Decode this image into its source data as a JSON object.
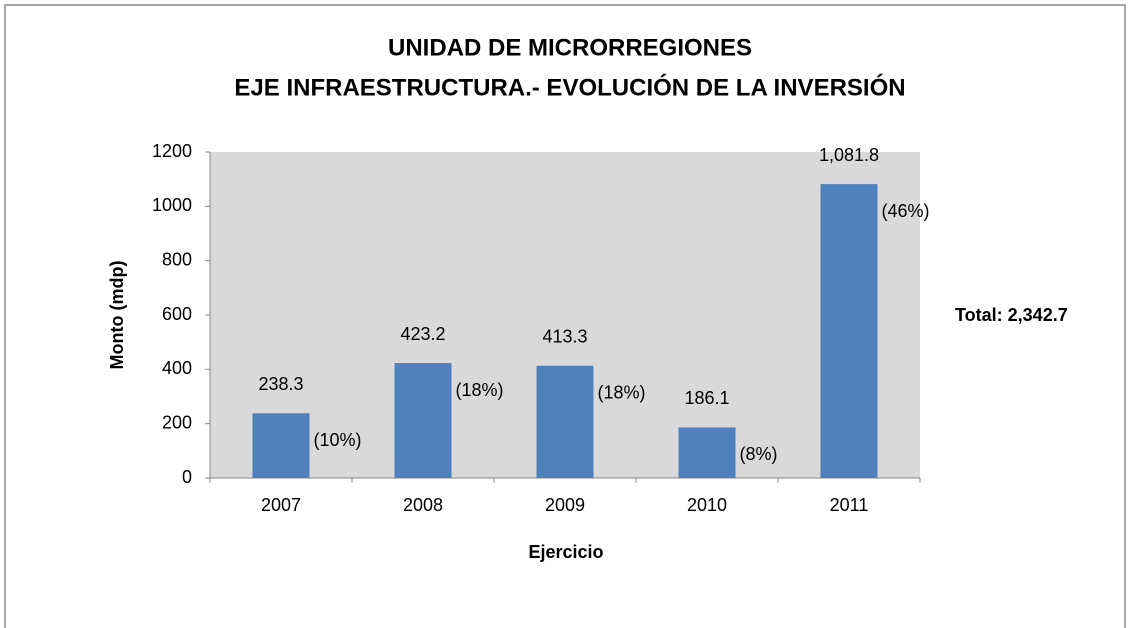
{
  "chart_data": {
    "type": "bar",
    "title": "UNIDAD DE MICRORREGIONES",
    "subtitle": "EJE INFRAESTRUCTURA.- EVOLUCIÓN DE LA INVERSIÓN",
    "x_label": "Ejercicio",
    "y_label": "Monto (mdp)",
    "categories": [
      "2007",
      "2008",
      "2009",
      "2010",
      "2011"
    ],
    "values": [
      238.3,
      423.2,
      413.3,
      186.1,
      1081.8
    ],
    "value_labels": [
      "238.3",
      "423.2",
      "413.3",
      "186.1",
      "1,081.8"
    ],
    "share_labels": [
      "(10%)",
      "(18%)",
      "(18%)",
      "(8%)",
      "(46%)"
    ],
    "annotation": "Total: 2,342.7",
    "color": "#4f81bd",
    "ylim": [
      0,
      1200
    ],
    "yticks": [
      0,
      200,
      400,
      600,
      800,
      1000,
      1200
    ],
    "grid": false
  }
}
